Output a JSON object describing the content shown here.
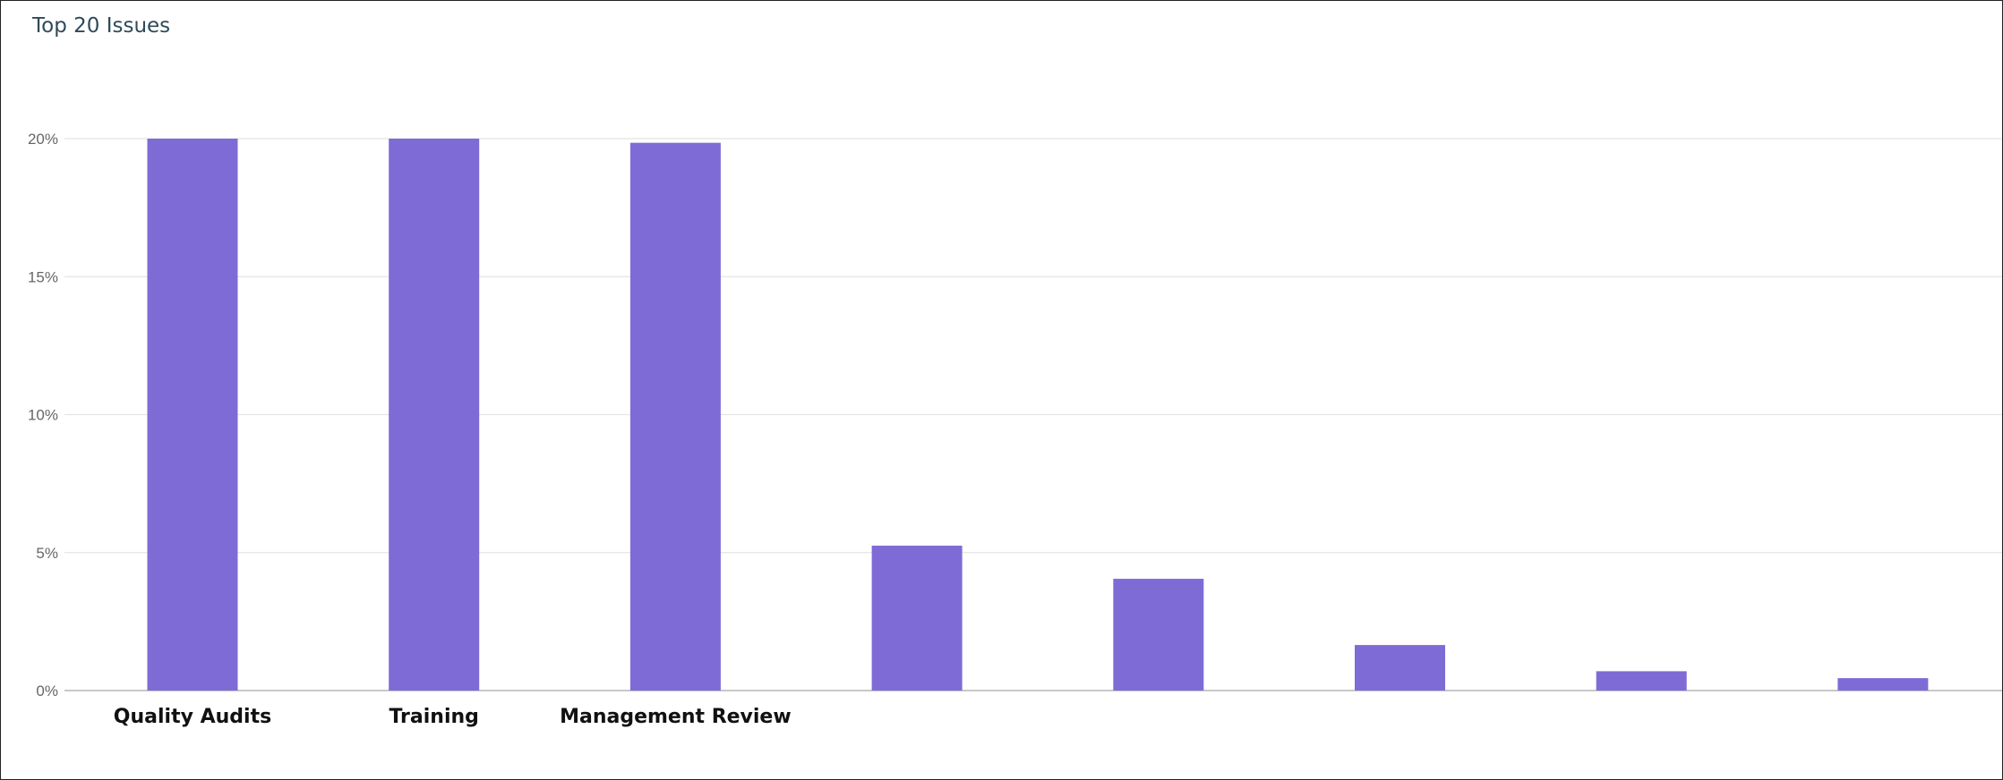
{
  "panel": {
    "title": "Top 20 Issues"
  },
  "chart_data": {
    "type": "bar",
    "title": "Top 20 Issues",
    "xlabel": "",
    "ylabel": "",
    "ylim": [
      0,
      20
    ],
    "yticks": [
      "0%",
      "5%",
      "10%",
      "15%",
      "20%"
    ],
    "categories": [
      "Quality Audits",
      "Training",
      "Management Review",
      "",
      "",
      "",
      "",
      ""
    ],
    "values": [
      20.0,
      20.0,
      19.85,
      5.25,
      4.05,
      1.65,
      0.7,
      0.45
    ],
    "bar_color": "#7f6bd6",
    "grid": true
  }
}
